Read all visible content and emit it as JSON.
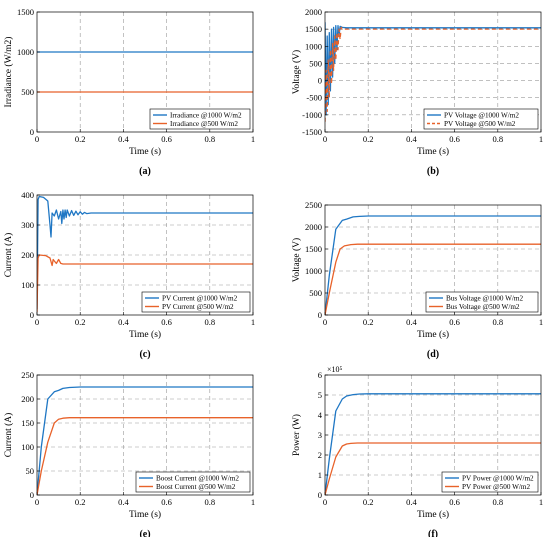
{
  "colors": {
    "blue": "#1f77c4",
    "orange": "#e8622a",
    "grid": "#9a9a9a"
  },
  "chart_data": [
    {
      "panel": "(a)",
      "type": "line",
      "xlabel": "Time (s)",
      "ylabel": "Irradiance (W/m2)",
      "xlim": [
        0,
        1
      ],
      "ylim": [
        0,
        1500
      ],
      "xticks": [
        0,
        0.2,
        0.4,
        0.6,
        0.8,
        1
      ],
      "xtick_labels": [
        "0",
        "0.2",
        "0.4",
        "0.6",
        "0.8",
        "1"
      ],
      "yticks": [
        0,
        500,
        1000,
        1500
      ],
      "ytick_labels": [
        "0",
        "500",
        "1000",
        "1500"
      ],
      "grid": true,
      "legend_position": "lower-right",
      "series": [
        {
          "name": "Irradiance @1000 W/m2",
          "color": "#1f77c4",
          "style": "solid",
          "x": [
            0,
            1
          ],
          "y": [
            1000,
            1000
          ]
        },
        {
          "name": "Irradiance @500 W/m2",
          "color": "#e8622a",
          "style": "solid",
          "x": [
            0,
            1
          ],
          "y": [
            500,
            500
          ]
        }
      ]
    },
    {
      "panel": "(b)",
      "type": "line",
      "xlabel": "Time (s)",
      "ylabel": "Voltage (V)",
      "xlim": [
        0,
        1
      ],
      "ylim": [
        -1500,
        2000
      ],
      "xticks": [
        0,
        0.2,
        0.4,
        0.6,
        0.8,
        1
      ],
      "xtick_labels": [
        "0",
        "0.2",
        "0.4",
        "0.6",
        "0.8",
        "1"
      ],
      "yticks": [
        -1500,
        -1000,
        -500,
        0,
        500,
        1000,
        1500,
        2000
      ],
      "ytick_labels": [
        "-1500",
        "-1000",
        "-500",
        "0",
        "500",
        "1000",
        "1500",
        "2000"
      ],
      "grid": true,
      "legend_position": "lower-right",
      "series": [
        {
          "name": "PV Voltage @1000 W/m2",
          "color": "#1f77c4",
          "style": "solid",
          "x": [
            0,
            0.005,
            0.01,
            0.015,
            0.02,
            0.025,
            0.03,
            0.035,
            0.04,
            0.045,
            0.05,
            0.055,
            0.06,
            0.065,
            0.07,
            0.08,
            0.1,
            1
          ],
          "y": [
            1700,
            -1000,
            1300,
            -700,
            1400,
            -300,
            1500,
            100,
            1550,
            500,
            1600,
            900,
            1600,
            1300,
            1580,
            1550,
            1540,
            1540
          ]
        },
        {
          "name": "PV Voltage @500 W/m2",
          "color": "#e8622a",
          "style": "dashed",
          "x": [
            0,
            0.005,
            0.01,
            0.015,
            0.02,
            0.025,
            0.03,
            0.035,
            0.04,
            0.045,
            0.05,
            0.055,
            0.06,
            0.065,
            0.07,
            0.075,
            0.08,
            0.1,
            1
          ],
          "y": [
            -1200,
            300,
            -900,
            600,
            -500,
            900,
            -100,
            1100,
            300,
            1300,
            600,
            1400,
            900,
            1500,
            1200,
            1550,
            1500,
            1500,
            1500
          ]
        }
      ]
    },
    {
      "panel": "(c)",
      "type": "line",
      "xlabel": "Time (s)",
      "ylabel": "Current (A)",
      "xlim": [
        0,
        1
      ],
      "ylim": [
        0,
        400
      ],
      "xticks": [
        0,
        0.2,
        0.4,
        0.6,
        0.8,
        1
      ],
      "xtick_labels": [
        "0",
        "0.2",
        "0.4",
        "0.6",
        "0.8",
        "1"
      ],
      "yticks": [
        0,
        100,
        200,
        300,
        400
      ],
      "ytick_labels": [
        "0",
        "100",
        "200",
        "300",
        "400"
      ],
      "grid": true,
      "legend_position": "lower-right",
      "series": [
        {
          "name": "PV Current @1000 W/m2",
          "color": "#1f77c4",
          "style": "solid",
          "x": [
            0,
            0.005,
            0.01,
            0.03,
            0.05,
            0.06,
            0.065,
            0.07,
            0.08,
            0.09,
            0.1,
            0.11,
            0.115,
            0.12,
            0.125,
            0.13,
            0.135,
            0.14,
            0.15,
            0.16,
            0.17,
            0.18,
            0.19,
            0.2,
            0.21,
            0.22,
            0.23,
            0.25,
            1
          ],
          "y": [
            20,
            385,
            395,
            392,
            380,
            300,
            260,
            340,
            330,
            350,
            320,
            345,
            305,
            350,
            320,
            350,
            325,
            350,
            330,
            348,
            332,
            346,
            334,
            344,
            336,
            342,
            338,
            340,
            340
          ]
        },
        {
          "name": "PV Current @500 W/m2",
          "color": "#e8622a",
          "style": "solid",
          "x": [
            0,
            0.005,
            0.01,
            0.04,
            0.06,
            0.07,
            0.075,
            0.08,
            0.09,
            0.1,
            0.11,
            0.12,
            1
          ],
          "y": [
            10,
            190,
            200,
            198,
            190,
            165,
            185,
            180,
            172,
            185,
            172,
            170,
            170
          ]
        }
      ]
    },
    {
      "panel": "(d)",
      "type": "line",
      "xlabel": "Time (s)",
      "ylabel": "Voltage (V)",
      "xlim": [
        0,
        1
      ],
      "ylim": [
        0,
        2500
      ],
      "xticks": [
        0,
        0.2,
        0.4,
        0.6,
        0.8,
        1
      ],
      "xtick_labels": [
        "0",
        "0.2",
        "0.4",
        "0.6",
        "0.8",
        "1"
      ],
      "yticks": [
        0,
        500,
        1000,
        1500,
        2000,
        2500
      ],
      "ytick_labels": [
        "0",
        "500",
        "1000",
        "1500",
        "2000",
        "2500"
      ],
      "grid": true,
      "legend_position": "lower-right",
      "series": [
        {
          "name": "Bus Voltage @1000 W/m2",
          "color": "#1f77c4",
          "style": "solid",
          "x": [
            0,
            0.02,
            0.05,
            0.08,
            0.1,
            0.13,
            0.16,
            0.2,
            0.3,
            1
          ],
          "y": [
            0,
            900,
            1950,
            2150,
            2180,
            2230,
            2240,
            2250,
            2250,
            2250
          ]
        },
        {
          "name": "Bus Voltage @500 W/m2",
          "color": "#e8622a",
          "style": "solid",
          "x": [
            0,
            0.02,
            0.05,
            0.07,
            0.09,
            0.12,
            0.15,
            0.2,
            1
          ],
          "y": [
            0,
            500,
            1200,
            1500,
            1570,
            1600,
            1610,
            1610,
            1610
          ]
        }
      ]
    },
    {
      "panel": "(e)",
      "type": "line",
      "xlabel": "Time (s)",
      "ylabel": "Current (A)",
      "xlim": [
        0,
        1
      ],
      "ylim": [
        0,
        250
      ],
      "xticks": [
        0,
        0.2,
        0.4,
        0.6,
        0.8,
        1
      ],
      "xtick_labels": [
        "0",
        "0.2",
        "0.4",
        "0.6",
        "0.8",
        "1"
      ],
      "yticks": [
        0,
        50,
        100,
        150,
        200,
        250
      ],
      "ytick_labels": [
        "0",
        "50",
        "100",
        "150",
        "200",
        "250"
      ],
      "grid": true,
      "legend_position": "lower-right",
      "series": [
        {
          "name": "Boost Current @1000 W/m2",
          "color": "#1f77c4",
          "style": "solid",
          "x": [
            0,
            0.02,
            0.05,
            0.08,
            0.1,
            0.12,
            0.15,
            0.2,
            0.3,
            1
          ],
          "y": [
            0,
            100,
            200,
            215,
            218,
            222,
            224,
            225,
            225,
            225
          ]
        },
        {
          "name": "Boost Current @500 W/m2",
          "color": "#e8622a",
          "style": "solid",
          "x": [
            0,
            0.02,
            0.05,
            0.08,
            0.1,
            0.12,
            0.15,
            0.2,
            1
          ],
          "y": [
            0,
            50,
            110,
            150,
            158,
            160,
            161,
            161,
            161
          ]
        }
      ]
    },
    {
      "panel": "(f)",
      "type": "line",
      "xlabel": "Time (s)",
      "ylabel": "Power (W)",
      "exponent_label": "×10⁵",
      "xlim": [
        0,
        1
      ],
      "ylim": [
        0,
        6
      ],
      "xticks": [
        0,
        0.2,
        0.4,
        0.6,
        0.8,
        1
      ],
      "xtick_labels": [
        "0",
        "0.2",
        "0.4",
        "0.6",
        "0.8",
        "1"
      ],
      "yticks": [
        0,
        1,
        2,
        3,
        4,
        5,
        6
      ],
      "ytick_labels": [
        "0",
        "1",
        "2",
        "3",
        "4",
        "5",
        "6"
      ],
      "grid": true,
      "legend_position": "lower-right",
      "series": [
        {
          "name": "PV Power @1000 W/m2",
          "color": "#1f77c4",
          "style": "solid",
          "x": [
            0,
            0.02,
            0.05,
            0.08,
            0.1,
            0.13,
            0.16,
            0.2,
            0.3,
            1
          ],
          "y": [
            0,
            1.8,
            4.2,
            4.8,
            4.95,
            5.02,
            5.05,
            5.06,
            5.06,
            5.06
          ]
        },
        {
          "name": "PV Power @500 W/m2",
          "color": "#e8622a",
          "style": "solid",
          "x": [
            0,
            0.02,
            0.05,
            0.08,
            0.1,
            0.12,
            0.15,
            0.2,
            1
          ],
          "y": [
            0,
            0.8,
            1.9,
            2.45,
            2.55,
            2.58,
            2.6,
            2.6,
            2.6
          ]
        }
      ]
    }
  ]
}
